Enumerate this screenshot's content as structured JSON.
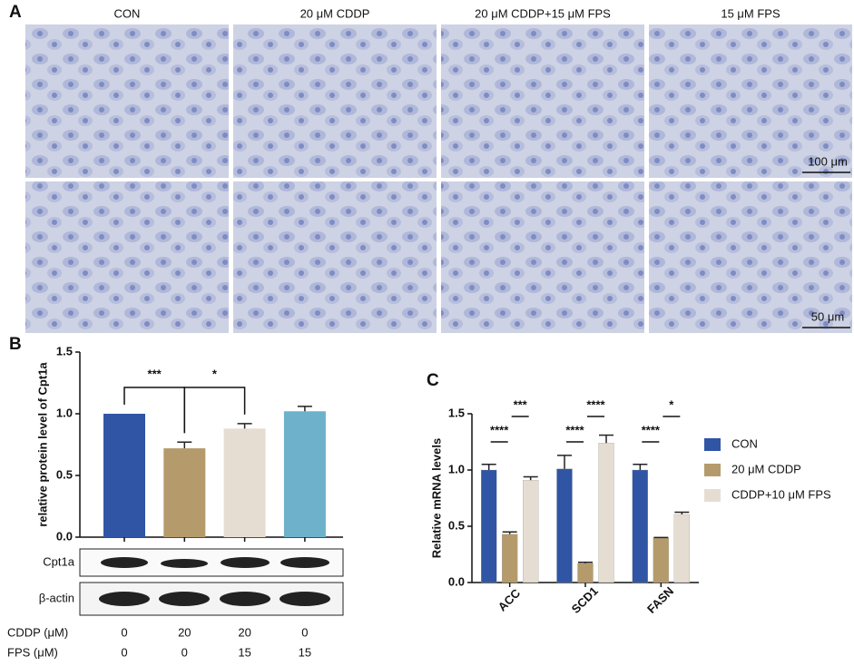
{
  "panel_labels": {
    "a": "A",
    "b": "B",
    "c": "C"
  },
  "microscopy": {
    "columns": [
      "CON",
      "20 μM CDDP",
      "20 μM CDDP+15 μM FPS",
      "15 μM FPS"
    ],
    "scale_bars": [
      "100 μm",
      "50 μm"
    ]
  },
  "chart_data": [
    {
      "type": "bar",
      "y_label": "relative protein level of Cpt1a",
      "categories": [
        null,
        null,
        null,
        null
      ],
      "values": [
        1.0,
        0.72,
        0.88,
        1.02
      ],
      "errors": [
        0,
        0.05,
        0.04,
        0.04
      ],
      "colors": [
        "#2f55a4",
        "#b59b6c",
        "#e6ddd2",
        "#6db1cb"
      ],
      "ylim": [
        0,
        1.5
      ],
      "yticks": [
        {
          "value": 0,
          "label": "0.0"
        },
        0.5,
        {
          "value": 1,
          "label": "1.0"
        },
        {
          "value": 1.5,
          "label": "1.5"
        }
      ],
      "significance": [
        {
          "label": "***",
          "from": 0,
          "to": 1
        },
        {
          "label": "*",
          "from": 1,
          "to": 2
        }
      ]
    },
    {
      "type": "bar",
      "y_label": "Relative mRNA levels",
      "categories": [
        "ACC",
        "SCD1",
        "FASN"
      ],
      "series": [
        {
          "name": "CON",
          "color": "#2f55a4",
          "values": [
            1.0,
            1.01,
            1.0
          ],
          "errors": [
            0.05,
            0.12,
            0.05
          ]
        },
        {
          "name": "20 μM CDDP",
          "color": "#b59b6c",
          "values": [
            0.43,
            0.17,
            0.395
          ],
          "errors": [
            0.02,
            0.01,
            0.005
          ]
        },
        {
          "name": "CDDP+10 μM FPS",
          "color": "#e6ddd2",
          "values": [
            0.91,
            1.24,
            0.605
          ],
          "errors": [
            0.03,
            0.07,
            0.02
          ]
        }
      ],
      "ylim": [
        0,
        1.5
      ],
      "yticks": [
        {
          "value": 0,
          "label": "0.0"
        },
        0.5,
        {
          "value": 1,
          "label": "1.0"
        },
        {
          "value": 1.5,
          "label": "1.5"
        }
      ],
      "legend": "right",
      "significance": [
        {
          "category": 0,
          "label": "****",
          "from": 0,
          "to": 1
        },
        {
          "category": 0,
          "label": "***",
          "from": 1,
          "to": 2
        },
        {
          "category": 1,
          "label": "****",
          "from": 0,
          "to": 1
        },
        {
          "category": 1,
          "label": "****",
          "from": 1,
          "to": 2
        },
        {
          "category": 2,
          "label": "****",
          "from": 0,
          "to": 1
        },
        {
          "category": 2,
          "label": "*",
          "from": 1,
          "to": 2
        }
      ]
    }
  ],
  "blot": {
    "bands": [
      "Cpt1a",
      "β-actin"
    ]
  },
  "treatment_table": {
    "rows": [
      {
        "label": "CDDP (μM)",
        "values": [
          0,
          20,
          20,
          0
        ]
      },
      {
        "label": "FPS (μM)",
        "values": [
          0,
          0,
          15,
          15
        ]
      }
    ]
  }
}
